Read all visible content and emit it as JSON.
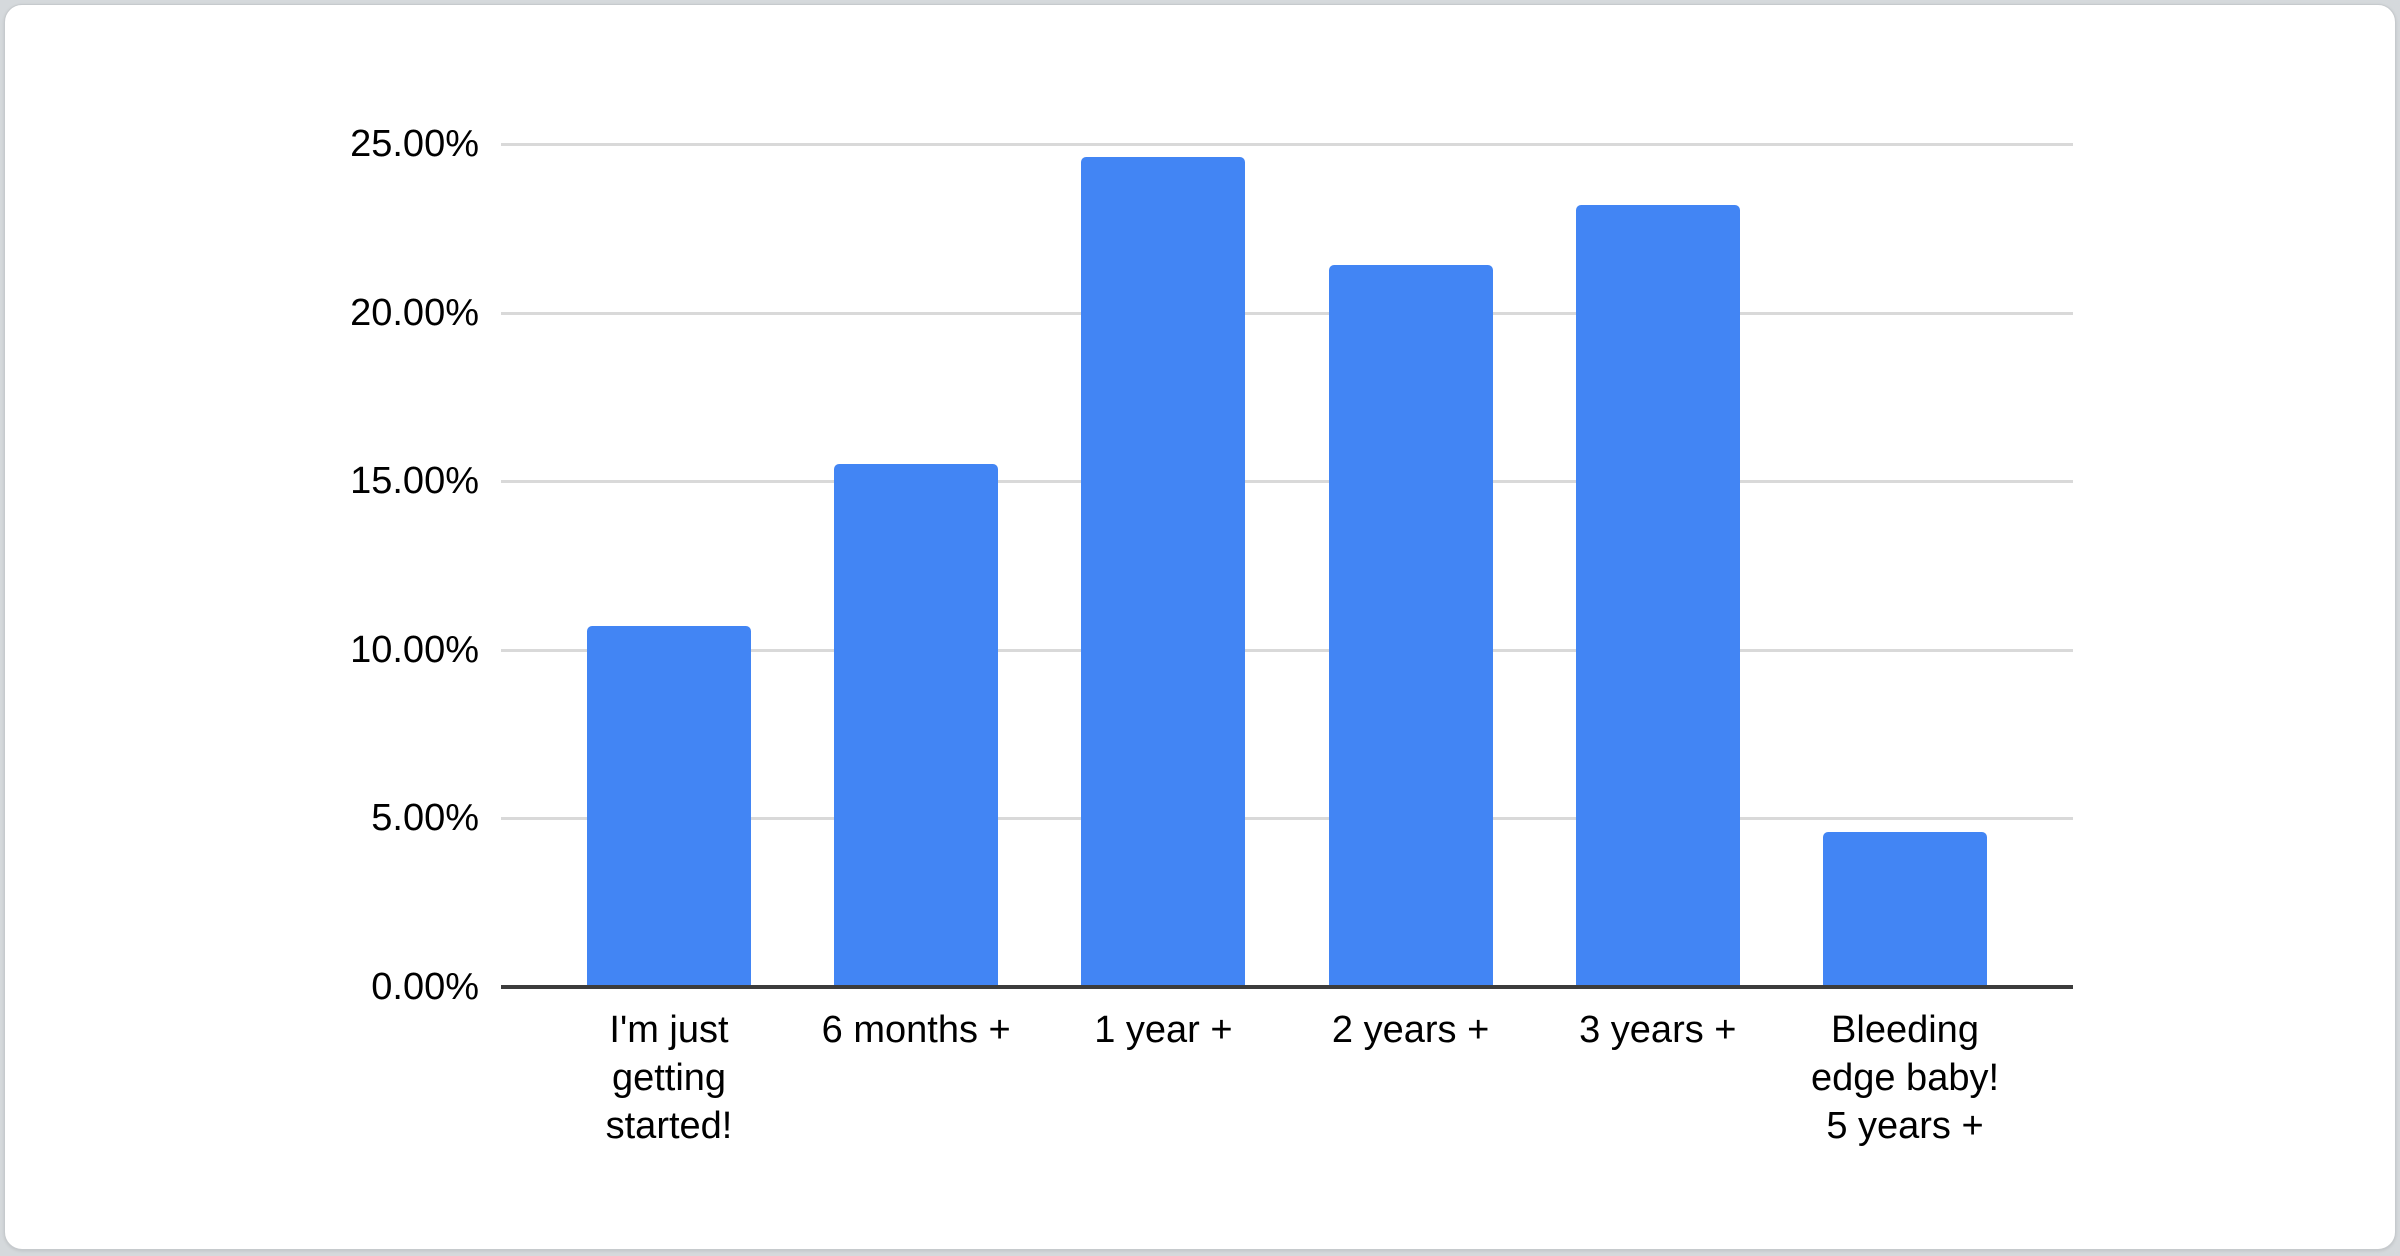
{
  "page": {
    "background_color": "#d5d9dc",
    "card_background_color": "#ffffff"
  },
  "chart_data": {
    "type": "bar",
    "title": "",
    "xlabel": "",
    "ylabel": "",
    "categories": [
      "I'm just getting started!",
      "6 months +",
      "1 year +",
      "2 years +",
      "3 years +",
      "Bleeding edge baby! 5 years +"
    ],
    "category_display_lines": [
      [
        "I'm just",
        "getting",
        "started!"
      ],
      [
        "6 months +"
      ],
      [
        "1 year +"
      ],
      [
        "2 years +"
      ],
      [
        "3 years +"
      ],
      [
        "Bleeding",
        "edge baby!",
        "5 years +"
      ]
    ],
    "values": [
      10.7,
      15.5,
      24.6,
      21.4,
      23.2,
      4.6
    ],
    "unit": "%",
    "ylim": [
      0,
      25
    ],
    "y_tick_interval": 5,
    "y_tick_labels": [
      "0.00%",
      "5.00%",
      "10.00%",
      "15.00%",
      "20.00%",
      "25.00%"
    ],
    "grid": "horizontal",
    "legend": "none",
    "bar_color": "#4285f4",
    "gridline_color": "#d9d9d9",
    "axis_line_color": "#3c3c3c",
    "text_color": "#000000"
  }
}
